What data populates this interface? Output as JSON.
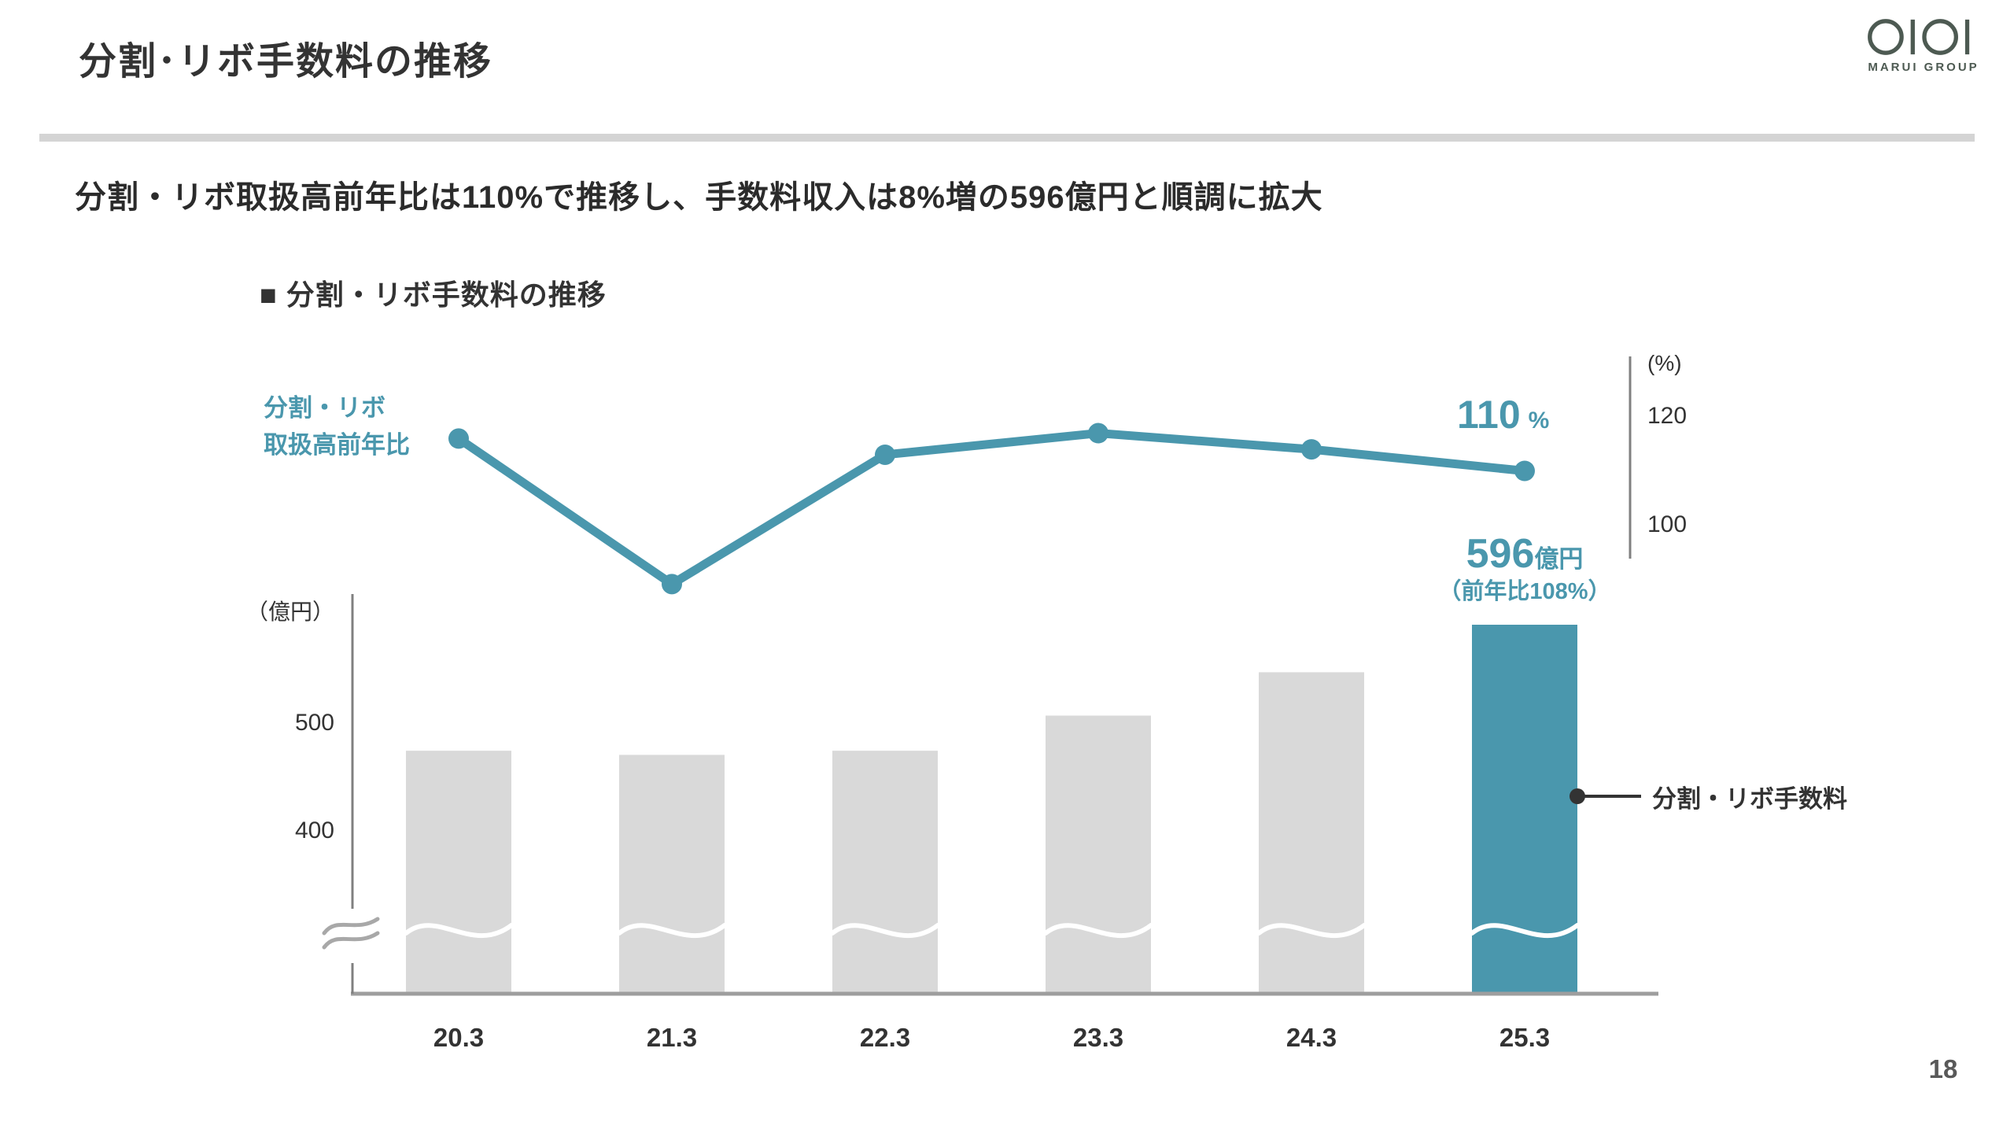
{
  "slide": {
    "title": "分割･リボ手数料の推移",
    "subtitle": "分割・リボ取扱高前年比は110%で推移し、手数料収入は8%増の596億円と順調に拡大",
    "page_number": "18"
  },
  "logo": {
    "brand": "OIOI",
    "name": "MARUI GROUP",
    "color": "#4D5A52"
  },
  "chart": {
    "heading": "■ 分割・リボ手数料の推移",
    "line_series_label_line1": "分割・リボ",
    "line_series_label_line2": "取扱高前年比",
    "line_end_value": "110",
    "line_end_unit": "%",
    "right_axis_unit": "(%)",
    "right_axis_ticks": [
      "120",
      "100"
    ],
    "left_axis_unit": "（億円）",
    "left_axis_ticks": [
      "500",
      "400"
    ],
    "highlight_value": "596",
    "highlight_unit": "億円",
    "highlight_note": "（前年比108%）",
    "bar_legend": "分割・リボ手数料"
  },
  "chart_data": {
    "type": "bar+line combo",
    "title": "分割・リボ手数料の推移",
    "categories": [
      "20.3",
      "21.3",
      "22.3",
      "23.3",
      "24.3",
      "25.3"
    ],
    "series": [
      {
        "name": "分割・リボ手数料",
        "type": "bar",
        "unit": "億円",
        "axis": "left",
        "values": [
          474,
          470,
          474,
          508,
          550,
          596
        ],
        "labeled_point": {
          "category": "25.3",
          "label": "596億円（前年比108%）"
        }
      },
      {
        "name": "分割・リボ取扱高前年比",
        "type": "line",
        "unit": "%",
        "axis": "right",
        "values": [
          116,
          89,
          113,
          117,
          114,
          110
        ],
        "labeled_point": {
          "category": "25.3",
          "label": "110%"
        }
      }
    ],
    "left_axis": {
      "unit": "億円",
      "ticks": [
        500,
        400
      ],
      "axis_break": true
    },
    "right_axis": {
      "unit": "%",
      "ticks": [
        120,
        100
      ]
    },
    "legend_position": "right of final bar",
    "grid": false,
    "colors": {
      "bar": "#D9D9D9",
      "accent": "#4A97AD",
      "axis": "#808080",
      "text": "#333333"
    }
  }
}
